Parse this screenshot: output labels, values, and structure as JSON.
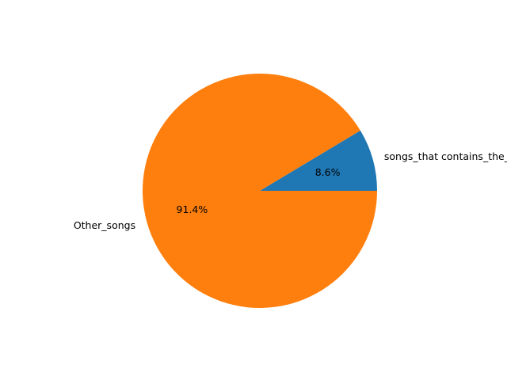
{
  "chart_data": {
    "type": "pie",
    "title": "",
    "categories": [
      "songs_that contains_the_word",
      "Other_songs"
    ],
    "values": [
      8.6,
      91.4
    ],
    "percent_labels": [
      "8.6%",
      "91.4%"
    ],
    "colors": [
      "#1f77b4",
      "#ff7f0e"
    ],
    "start_angle_deg": 0,
    "direction": "counterclockwise",
    "legend": "none"
  }
}
